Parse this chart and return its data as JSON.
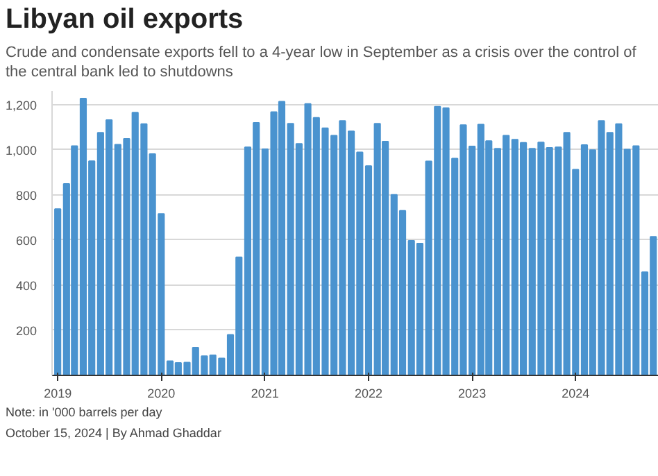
{
  "chart_data": {
    "type": "bar",
    "title": "Libyan oil exports",
    "subtitle": "Crude and condensate exports fell to a 4-year low in September as a crisis over the control of the central bank led to shutdowns",
    "annotations": [
      "Note: in '000 barrels per day",
      "October 15, 2024 | By Ahmad Ghaddar"
    ],
    "x": [
      "2019-01",
      "2019-02",
      "2019-03",
      "2019-04",
      "2019-05",
      "2019-06",
      "2019-07",
      "2019-08",
      "2019-09",
      "2019-10",
      "2019-11",
      "2019-12",
      "2020-01",
      "2020-02",
      "2020-03",
      "2020-04",
      "2020-05",
      "2020-06",
      "2020-07",
      "2020-08",
      "2020-09",
      "2020-10",
      "2020-11",
      "2020-12",
      "2021-01",
      "2021-02",
      "2021-03",
      "2021-04",
      "2021-05",
      "2021-06",
      "2021-07",
      "2021-08",
      "2021-09",
      "2021-10",
      "2021-11",
      "2021-12",
      "2022-01",
      "2022-02",
      "2022-03",
      "2022-04",
      "2022-05",
      "2022-06",
      "2022-07",
      "2022-08",
      "2022-09",
      "2022-10",
      "2022-11",
      "2022-12",
      "2023-01",
      "2023-02",
      "2023-03",
      "2023-04",
      "2023-05",
      "2023-06",
      "2023-07",
      "2023-08",
      "2023-09",
      "2023-10",
      "2023-11",
      "2023-12",
      "2024-01",
      "2024-02",
      "2024-03",
      "2024-04",
      "2024-05",
      "2024-06",
      "2024-07",
      "2024-08",
      "2024-09",
      "2024-10"
    ],
    "values": [
      737,
      848,
      1016,
      1226,
      949,
      1075,
      1131,
      1022,
      1048,
      1164,
      1113,
      980,
      715,
      63,
      55,
      57,
      123,
      85,
      89,
      75,
      180,
      523,
      1010,
      1119,
      1002,
      1166,
      1212,
      1115,
      1026,
      1202,
      1141,
      1095,
      1062,
      1127,
      1081,
      988,
      927,
      1115,
      1036,
      800,
      729,
      596,
      584,
      948,
      1190,
      1184,
      960,
      1109,
      1014,
      1111,
      1038,
      1004,
      1062,
      1044,
      1030,
      1004,
      1032,
      1008,
      1010,
      1075,
      911,
      1020,
      998,
      1127,
      1075,
      1113,
      1000,
      1016,
      457,
      614
    ],
    "color": "#4a93cf",
    "xlim": [
      "2018-12-12",
      "2024-10-20"
    ],
    "xticks": [
      {
        "value": "2019-01-01",
        "label": "2019"
      },
      {
        "value": "2020-01-01",
        "label": "2020"
      },
      {
        "value": "2021-01-01",
        "label": "2021"
      },
      {
        "value": "2022-01-01",
        "label": "2022"
      },
      {
        "value": "2023-01-01",
        "label": "2023"
      },
      {
        "value": "2024-01-01",
        "label": "2024"
      }
    ],
    "ylim": [
      0,
      1260
    ],
    "yticks": [
      {
        "value": 0,
        "label": null
      },
      200,
      400,
      600,
      800,
      {
        "value": 1000,
        "label": "1,000"
      },
      {
        "value": 1200,
        "label": "1,200"
      }
    ],
    "grid": "y"
  }
}
